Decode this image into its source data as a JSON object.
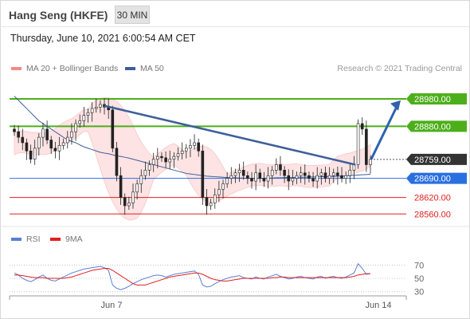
{
  "header": {
    "title": "Hang Seng (HKFE)",
    "interval": "30 MIN",
    "datetime": "Thursday, June 10, 2021 6:00:54 AM CET",
    "copyright": "Research © 2021 Trading Central"
  },
  "legend": {
    "bollinger": {
      "label": "MA 20 + Bollinger Bands",
      "color": "#f08a8a"
    },
    "ma50": {
      "label": "MA 50",
      "color": "#3d5f9a"
    }
  },
  "rsi_legend": {
    "rsi": {
      "label": "RSI",
      "color": "#5b7fd6"
    },
    "ma9": {
      "label": "9MA",
      "color": "#e02020"
    }
  },
  "chart_data": [
    {
      "type": "candlestick",
      "price_range": [
        28520,
        29050
      ],
      "x_labels": [
        "Jun 7",
        "Jun 14"
      ],
      "price_labels": [
        {
          "value": 28980.0,
          "text": "28980.00",
          "kind": "resistance",
          "color": "#4caf1a"
        },
        {
          "value": 28880.0,
          "text": "28880.00",
          "kind": "resistance",
          "color": "#4caf1a"
        },
        {
          "value": 28759.0,
          "text": "28759.00",
          "kind": "current",
          "color": "#333333"
        },
        {
          "value": 28690.0,
          "text": "28690.00",
          "kind": "pivot",
          "color": "#2a6fe0"
        },
        {
          "value": 28620.0,
          "text": "28620.00",
          "kind": "support",
          "color": "#e02020"
        },
        {
          "value": 28560.0,
          "text": "28560.00",
          "kind": "support",
          "color": "#e02020"
        }
      ],
      "close_series": [
        28860,
        28840,
        28820,
        28790,
        28760,
        28800,
        28840,
        28870,
        28830,
        28800,
        28790,
        28810,
        28820,
        28840,
        28860,
        28890,
        28900,
        28920,
        28930,
        28945,
        28950,
        28960,
        28950,
        28940,
        28800,
        28700,
        28620,
        28590,
        28600,
        28640,
        28670,
        28700,
        28720,
        28740,
        28760,
        28770,
        28765,
        28750,
        28760,
        28770,
        28780,
        28790,
        28800,
        28810,
        28820,
        28790,
        28620,
        28590,
        28600,
        28630,
        28650,
        28670,
        28690,
        28700,
        28710,
        28720,
        28700,
        28690,
        28680,
        28710,
        28690,
        28680,
        28700,
        28720,
        28740,
        28720,
        28700,
        28680,
        28690,
        28700,
        28710,
        28700,
        28690,
        28680,
        28700,
        28710,
        28690,
        28700,
        28710,
        28700,
        28690,
        28700,
        28720,
        28740,
        28890,
        28870,
        28740,
        28759
      ],
      "ma50": [
        28990,
        28975,
        28960,
        28945,
        28930,
        28915,
        28900,
        28890,
        28880,
        28870,
        28860,
        28850,
        28840,
        28830,
        28825,
        28820,
        28812,
        28805,
        28800,
        28795,
        28790,
        28785,
        28782,
        28780,
        28776,
        28772,
        28770,
        28767,
        28764,
        28760,
        28756,
        28752,
        28748,
        28744,
        28740,
        28736,
        28732,
        28728,
        28724,
        28720,
        28716,
        28712,
        28708,
        28706,
        28704,
        28702,
        28700,
        28698,
        28697,
        28696,
        28695,
        28694,
        28693,
        28692,
        28692,
        28691,
        28691,
        28690,
        28690,
        28690,
        28690,
        28690,
        28691,
        28691,
        28692,
        28692,
        28693,
        28693,
        28693,
        28694,
        28694,
        28694,
        28695,
        28695,
        28695,
        28696,
        28696,
        28697,
        28697,
        28698,
        28698,
        28699,
        28700,
        28701,
        28702,
        28703,
        28704,
        28705
      ],
      "trendline": {
        "from": 28955,
        "to": 28740
      },
      "projection": {
        "from": 28760,
        "to": 28975
      }
    },
    {
      "type": "line",
      "name": "RSI",
      "ylim": [
        20,
        80
      ],
      "y_ticks": [
        70,
        50,
        30
      ],
      "rsi": [
        58,
        55,
        50,
        47,
        45,
        48,
        52,
        55,
        50,
        47,
        46,
        49,
        52,
        55,
        58,
        60,
        62,
        64,
        65,
        66,
        67,
        68,
        66,
        62,
        40,
        35,
        33,
        35,
        38,
        42,
        45,
        48,
        50,
        52,
        54,
        55,
        54,
        52,
        54,
        56,
        57,
        58,
        59,
        60,
        61,
        56,
        40,
        37,
        38,
        42,
        45,
        48,
        50,
        52,
        53,
        54,
        51,
        50,
        49,
        52,
        50,
        49,
        52,
        54,
        56,
        53,
        51,
        49,
        50,
        52,
        53,
        51,
        50,
        49,
        52,
        53,
        50,
        52,
        53,
        51,
        50,
        52,
        55,
        58,
        72,
        65,
        56,
        57
      ],
      "ma9": [
        55,
        55,
        54,
        53,
        52,
        51,
        51,
        51,
        50,
        50,
        50,
        50,
        50,
        51,
        52,
        54,
        56,
        58,
        60,
        62,
        63,
        64,
        65,
        65,
        62,
        58,
        54,
        50,
        46,
        42,
        40,
        40,
        40,
        42,
        44,
        46,
        48,
        50,
        52,
        53,
        54,
        55,
        56,
        57,
        58,
        58,
        56,
        53,
        50,
        48,
        47,
        46,
        46,
        47,
        48,
        49,
        50,
        50,
        50,
        50,
        50,
        50,
        50,
        51,
        51,
        52,
        52,
        51,
        51,
        51,
        51,
        51,
        51,
        51,
        51,
        51,
        51,
        51,
        51,
        51,
        51,
        51,
        52,
        53,
        55,
        56,
        57,
        57
      ]
    }
  ]
}
